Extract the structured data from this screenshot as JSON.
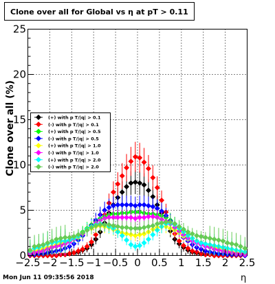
{
  "header": {
    "title": "Clone  over all for Global vs   η at pT > 0.11"
  },
  "footer": {
    "date": "Mon Jun 11 09:35:56 2018"
  },
  "chart_data": {
    "type": "scatter",
    "title": "Clone  over all for Global vs   η at pT > 0.11",
    "xlabel": "η",
    "ylabel": "Clone  over all (%)",
    "xlim": [
      -2.5,
      2.5
    ],
    "ylim": [
      0,
      25
    ],
    "x_ticks": [
      -2.5,
      -2,
      -1.5,
      -1,
      -0.5,
      0,
      0.5,
      1,
      1.5,
      2,
      2.5
    ],
    "x_tick_labels": [
      "−2.5",
      "−2",
      "−1.5",
      "−1",
      "−0.5",
      "0",
      "0.5",
      "1",
      "1.5",
      "2",
      "2.5"
    ],
    "y_ticks": [
      0,
      5,
      10,
      15,
      20,
      25
    ],
    "y_tick_labels": [
      "0",
      "5",
      "10",
      "15",
      "20",
      "25"
    ],
    "grid": true,
    "legend_position": "middle-left",
    "x": [
      -2.45,
      -2.35,
      -2.25,
      -2.15,
      -2.05,
      -1.95,
      -1.85,
      -1.75,
      -1.65,
      -1.55,
      -1.45,
      -1.35,
      -1.25,
      -1.15,
      -1.05,
      -0.95,
      -0.85,
      -0.75,
      -0.65,
      -0.55,
      -0.45,
      -0.35,
      -0.25,
      -0.15,
      -0.05,
      0.05,
      0.15,
      0.25,
      0.35,
      0.45,
      0.55,
      0.65,
      0.75,
      0.85,
      0.95,
      1.05,
      1.15,
      1.25,
      1.35,
      1.45,
      1.55,
      1.65,
      1.75,
      1.85,
      1.95,
      2.05,
      2.15,
      2.25,
      2.35,
      2.45
    ],
    "series": [
      {
        "name": "(+) with p T/|q| > 0.1",
        "color": "#000000",
        "values": [
          0,
          0,
          0,
          0,
          0,
          0,
          0,
          0.1,
          0.1,
          0.2,
          0.3,
          0.4,
          0.6,
          0.8,
          1.2,
          1.8,
          2.6,
          3.6,
          4.7,
          5.6,
          6.4,
          7.0,
          7.6,
          8.0,
          8.1,
          8.0,
          7.8,
          7.2,
          6.5,
          5.6,
          4.7,
          3.7,
          2.7,
          1.8,
          1.3,
          0.9,
          0.6,
          0.4,
          0.3,
          0.2,
          0.1,
          0.1,
          0,
          0,
          0,
          0,
          0,
          0,
          0,
          0
        ]
      },
      {
        "name": "(-) with p T/|q| > 0.1",
        "color": "#ff0000",
        "values": [
          0,
          0,
          0,
          0,
          0,
          0,
          0,
          0.1,
          0.1,
          0.2,
          0.3,
          0.5,
          0.7,
          1.0,
          1.5,
          2.3,
          3.3,
          4.5,
          5.8,
          7.0,
          7.9,
          8.8,
          9.7,
          10.4,
          10.9,
          10.8,
          10.3,
          9.6,
          8.6,
          7.5,
          6.1,
          4.8,
          3.5,
          2.4,
          1.6,
          1.1,
          0.8,
          0.5,
          0.4,
          0.2,
          0.1,
          0.1,
          0,
          0,
          0,
          0,
          0,
          0,
          0,
          0
        ]
      },
      {
        "name": "(+) with p T/|q| > 0.5",
        "color": "#00ff00",
        "values": [
          0.2,
          0.4,
          0.5,
          0.6,
          0.8,
          0.9,
          1.0,
          1.2,
          1.4,
          1.6,
          1.9,
          2.2,
          2.6,
          3.0,
          3.4,
          3.8,
          4.1,
          4.3,
          4.5,
          4.6,
          4.6,
          4.7,
          4.7,
          4.8,
          4.8,
          4.8,
          4.7,
          4.6,
          4.6,
          4.5,
          4.4,
          4.2,
          3.9,
          3.5,
          3.1,
          2.7,
          2.3,
          1.9,
          1.6,
          1.4,
          1.2,
          1.0,
          0.9,
          0.8,
          0.6,
          0.5,
          0.4,
          0.3,
          0.2,
          0.2
        ]
      },
      {
        "name": "(-) with p T/|q| > 0.5",
        "color": "#0000ff",
        "values": [
          0.1,
          0.1,
          0.2,
          0.2,
          0.3,
          0.4,
          0.5,
          0.6,
          0.8,
          1.0,
          1.3,
          1.7,
          2.2,
          2.8,
          3.3,
          3.9,
          4.5,
          5.0,
          5.3,
          5.5,
          5.6,
          5.6,
          5.6,
          5.6,
          5.5,
          5.6,
          5.6,
          5.5,
          5.4,
          5.2,
          4.9,
          4.4,
          3.8,
          3.1,
          2.5,
          2.0,
          1.6,
          1.2,
          0.9,
          0.7,
          0.5,
          0.4,
          0.3,
          0.2,
          0.2,
          0.1,
          0.1,
          0.1,
          0.1,
          0
        ]
      },
      {
        "name": "(+) with p T/|q| > 1.0",
        "color": "#ffff00",
        "values": [
          0.3,
          0.5,
          0.6,
          0.8,
          0.9,
          1.0,
          1.2,
          1.4,
          1.5,
          1.6,
          1.8,
          2.0,
          2.4,
          2.8,
          3.0,
          3.2,
          3.3,
          3.2,
          3.1,
          2.9,
          2.7,
          2.5,
          2.4,
          2.3,
          2.2,
          2.3,
          2.4,
          2.6,
          2.9,
          3.1,
          3.2,
          3.2,
          3.0,
          2.8,
          2.5,
          2.1,
          1.8,
          1.6,
          1.4,
          1.3,
          1.2,
          1.1,
          0.9,
          0.8,
          0.6,
          0.5,
          0.4,
          0.3,
          0.3,
          0.2
        ]
      },
      {
        "name": "(-) with p T/|q| > 1.0",
        "color": "#ff00ff",
        "values": [
          0.2,
          0.3,
          0.4,
          0.5,
          0.7,
          0.9,
          1.0,
          1.1,
          1.3,
          1.5,
          1.8,
          2.1,
          2.4,
          2.8,
          3.2,
          3.6,
          3.9,
          4.1,
          4.2,
          4.2,
          4.2,
          4.2,
          4.2,
          4.2,
          4.1,
          4.2,
          4.2,
          4.3,
          4.3,
          4.2,
          4.0,
          3.8,
          3.5,
          3.1,
          2.7,
          2.3,
          1.9,
          1.6,
          1.4,
          1.2,
          1.0,
          0.9,
          0.7,
          0.6,
          0.5,
          0.4,
          0.3,
          0.2,
          0.2,
          0.1
        ]
      },
      {
        "name": "(+) with p T/|q| > 2.0",
        "color": "#00ffff",
        "values": [
          0.5,
          0.8,
          0.9,
          1.1,
          1.3,
          1.4,
          1.5,
          1.6,
          1.6,
          1.7,
          1.9,
          2.1,
          2.5,
          2.9,
          3.2,
          3.4,
          3.5,
          3.4,
          3.2,
          3.0,
          2.6,
          2.2,
          1.7,
          1.2,
          1.0,
          1.1,
          1.4,
          1.8,
          2.3,
          2.8,
          3.2,
          3.5,
          3.6,
          3.4,
          3.0,
          2.6,
          2.2,
          1.9,
          1.6,
          1.4,
          1.3,
          1.2,
          1.1,
          1.0,
          0.9,
          0.8,
          0.7,
          0.6,
          0.5,
          0.4
        ]
      },
      {
        "name": "(-) with p T/|q| > 2.0",
        "color": "#66cc55",
        "values": [
          0.6,
          1.0,
          1.1,
          1.2,
          1.4,
          1.6,
          1.8,
          1.9,
          2.0,
          2.0,
          2.1,
          2.3,
          2.5,
          2.8,
          3.1,
          3.3,
          3.4,
          3.4,
          3.4,
          3.3,
          3.2,
          3.1,
          3.1,
          3.0,
          3.0,
          3.0,
          3.1,
          3.2,
          3.3,
          3.5,
          3.6,
          3.7,
          3.7,
          3.5,
          3.2,
          2.9,
          2.6,
          2.4,
          2.2,
          2.1,
          2.0,
          1.9,
          1.8,
          1.7,
          1.6,
          1.4,
          1.3,
          1.2,
          1.0,
          0.8
        ]
      }
    ]
  }
}
